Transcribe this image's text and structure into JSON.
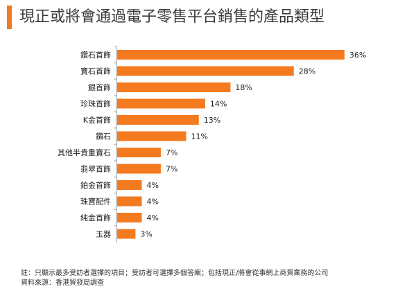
{
  "header": {
    "title": "現正或將會通過電子零售平台銷售的產品類型",
    "accent_color": "#f47a20"
  },
  "chart_data": {
    "type": "bar",
    "orientation": "horizontal",
    "categories": [
      "鑽石首飾",
      "寶石首飾",
      "銀首飾",
      "珍珠首飾",
      "K金首飾",
      "鑽石",
      "其他半貴重寶石",
      "翡翠首飾",
      "鉑金首飾",
      "珠寶配件",
      "純金首飾",
      "玉器"
    ],
    "values": [
      36,
      28,
      18,
      14,
      13,
      11,
      7,
      7,
      4,
      4,
      4,
      3
    ],
    "value_labels": [
      "36%",
      "28%",
      "18%",
      "14%",
      "13%",
      "11%",
      "7%",
      "7%",
      "4%",
      "4%",
      "4%",
      "3%"
    ],
    "unit": "%",
    "bar_color": "#f47a20",
    "axis_color": "#999999",
    "xlim": [
      0,
      37
    ],
    "grid": false,
    "title": "",
    "xlabel": "",
    "ylabel": ""
  },
  "notes": {
    "note": "註：只顯示最多受訪者選擇的項目；受訪者可選擇多個答案；包括現正/將會從事網上商貿業務的公司",
    "source": "資料來源：香港貿發局調查"
  }
}
